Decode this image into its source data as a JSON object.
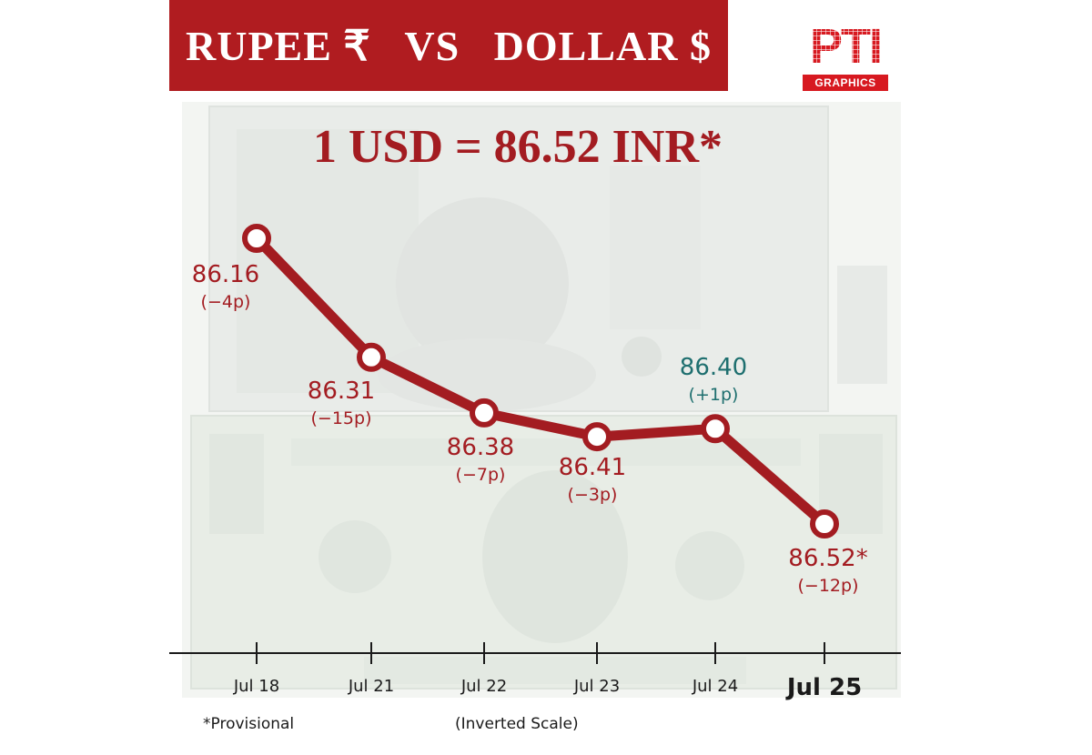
{
  "header": {
    "title": "RUPEE ₹   VS   DOLLAR $",
    "logo_word": "PTI",
    "logo_sub": "GRAPHICS"
  },
  "headline": "1 USD = 86.52 INR*",
  "footnotes": {
    "provisional": "*Provisional",
    "scale": "(Inverted Scale)"
  },
  "colors": {
    "banner": "#b01c20",
    "line": "#a31c21",
    "down_label": "#a31c21",
    "up_label": "#1e6f6f",
    "axis": "#1a1a1a"
  },
  "chart_data": {
    "type": "line",
    "title": "1 USD = 86.52 INR*",
    "y_inverted": true,
    "ylim": [
      86.52,
      86.16
    ],
    "categories": [
      "Jul 18",
      "Jul 21",
      "Jul 22",
      "Jul 23",
      "Jul 24",
      "Jul 25"
    ],
    "values": [
      86.16,
      86.31,
      86.38,
      86.41,
      86.4,
      86.52
    ],
    "value_labels": [
      "86.16",
      "86.31",
      "86.38",
      "86.41",
      "86.40",
      "86.52*"
    ],
    "changes": [
      "(−4p)",
      "(−15p)",
      "(−7p)",
      "(−3p)",
      "(+1p)",
      "(−12p)"
    ],
    "grid": false
  }
}
